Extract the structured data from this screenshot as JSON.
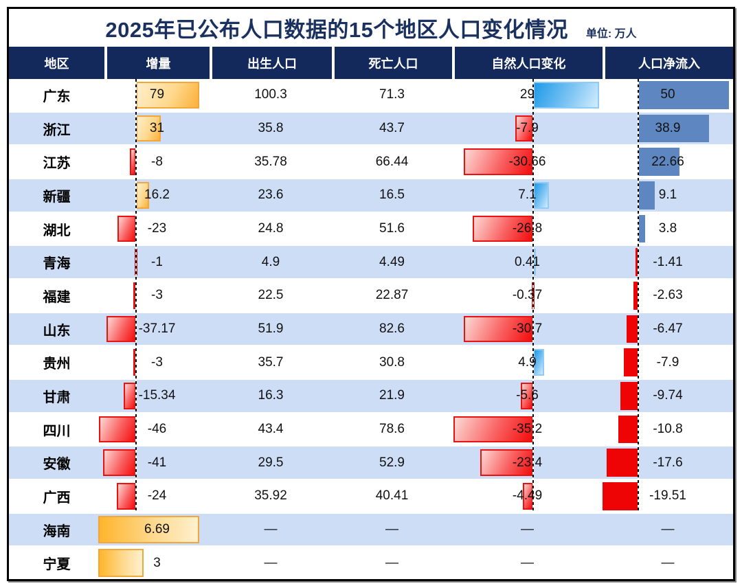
{
  "page": {
    "title": "2025年已公布人口数据的15个地区人口变化情况",
    "unit_label": "单位: 万人",
    "missing_placeholder": "—"
  },
  "chart_data": {
    "type": "table",
    "title": "2025年已公布人口数据的15个地区人口变化情况",
    "unit": "万人",
    "columns": [
      "地区",
      "增量",
      "出生人口",
      "死亡人口",
      "自然人口变化",
      "人口净流入"
    ],
    "column_keys": [
      "region",
      "increment",
      "births",
      "deaths",
      "natural_change",
      "net_inflow"
    ],
    "bar_columns": {
      "increment": {
        "positive_color": "#fbb03a",
        "negative_color": "#f30c0c",
        "axis": "dashed zero line"
      },
      "natural_change": {
        "positive_color": "#1f9ae8",
        "negative_color": "#f30c0c",
        "axis": "dashed zero line"
      },
      "net_inflow": {
        "positive_color": "#5e87c2",
        "negative_color": "#ee0404",
        "axis": "dashed zero line"
      }
    },
    "rows": [
      {
        "region": "广东",
        "increment": 79,
        "births": 100.3,
        "deaths": 71.3,
        "natural_change": 29,
        "net_inflow": 50
      },
      {
        "region": "浙江",
        "increment": 31,
        "births": 35.8,
        "deaths": 43.7,
        "natural_change": -7.9,
        "net_inflow": 38.9
      },
      {
        "region": "江苏",
        "increment": -8,
        "births": 35.78,
        "deaths": 66.44,
        "natural_change": -30.66,
        "net_inflow": 22.66
      },
      {
        "region": "新疆",
        "increment": 16.2,
        "births": 23.6,
        "deaths": 16.5,
        "natural_change": 7.1,
        "net_inflow": 9.1
      },
      {
        "region": "湖北",
        "increment": -23,
        "births": 24.8,
        "deaths": 51.6,
        "natural_change": -26.8,
        "net_inflow": 3.8
      },
      {
        "region": "青海",
        "increment": -1,
        "births": 4.9,
        "deaths": 4.49,
        "natural_change": 0.41,
        "net_inflow": -1.41
      },
      {
        "region": "福建",
        "increment": -3,
        "births": 22.5,
        "deaths": 22.87,
        "natural_change": -0.37,
        "net_inflow": -2.63
      },
      {
        "region": "山东",
        "increment": -37.17,
        "births": 51.9,
        "deaths": 82.6,
        "natural_change": -30.7,
        "net_inflow": -6.47
      },
      {
        "region": "贵州",
        "increment": -3,
        "births": 35.7,
        "deaths": 30.8,
        "natural_change": 4.9,
        "net_inflow": -7.9
      },
      {
        "region": "甘肃",
        "increment": -15.34,
        "births": 16.3,
        "deaths": 21.9,
        "natural_change": -5.6,
        "net_inflow": -9.74
      },
      {
        "region": "四川",
        "increment": -46,
        "births": 43.4,
        "deaths": 78.6,
        "natural_change": -35.2,
        "net_inflow": -10.8
      },
      {
        "region": "安徽",
        "increment": -41,
        "births": 29.5,
        "deaths": 52.9,
        "natural_change": -23.4,
        "net_inflow": -17.6
      },
      {
        "region": "广西",
        "increment": -24,
        "births": 35.92,
        "deaths": 40.41,
        "natural_change": -4.49,
        "net_inflow": -19.51
      },
      {
        "region": "海南",
        "increment": 6.69,
        "births": null,
        "deaths": null,
        "natural_change": null,
        "net_inflow": null
      },
      {
        "region": "宁夏",
        "increment": 3,
        "births": null,
        "deaths": null,
        "natural_change": null,
        "net_inflow": null
      }
    ]
  },
  "colors": {
    "header_bg": "#13295c",
    "title_text": "#1a3160",
    "row_alt_bg": "#cdddf6",
    "bar_orange": "#fbb03a",
    "bar_red": "#f30c0c",
    "bar_blue": "#1f9ae8",
    "bar_steel": "#5e87c2",
    "bar_red_flat": "#ee0404"
  }
}
